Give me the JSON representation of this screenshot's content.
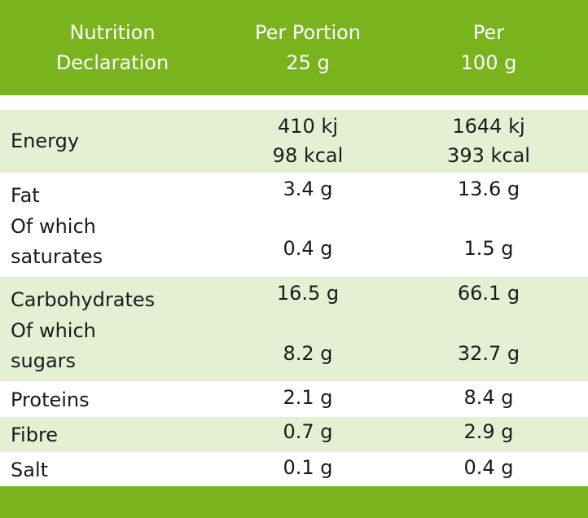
{
  "header": {
    "col1_line1": "Nutrition",
    "col1_line2": "Declaration",
    "col2_line1": "Per Portion",
    "col2_line2": "25 g",
    "col3_line1": "Per",
    "col3_line2": "100 g"
  },
  "rows": {
    "energy": {
      "label": "Energy",
      "portion_kj": "410 kj",
      "portion_kcal": "98 kcal",
      "per100_kj": "1644 kj",
      "per100_kcal": "393 kcal"
    },
    "fat": {
      "label": "Fat",
      "portion": "3.4 g",
      "per100": "13.6 g",
      "sub_label_1": "Of which",
      "sub_label_2": "saturates",
      "sub_portion": "0.4 g",
      "sub_per100": "1.5 g"
    },
    "carbs": {
      "label": "Carbohydrates",
      "portion": "16.5 g",
      "per100": "66.1 g",
      "sub_label_1": "Of which",
      "sub_label_2": "sugars",
      "sub_portion": "8.2 g",
      "sub_per100": "32.7 g"
    },
    "proteins": {
      "label": "Proteins",
      "portion": "2.1 g",
      "per100": "8.4 g"
    },
    "fibre": {
      "label": "Fibre",
      "portion": "0.7 g",
      "per100": "2.9 g"
    },
    "salt": {
      "label": "Salt",
      "portion": "0.1 g",
      "per100": "0.4 g"
    }
  },
  "colors": {
    "header_green": "#79b41e",
    "row_shade": "#e5efd3"
  }
}
